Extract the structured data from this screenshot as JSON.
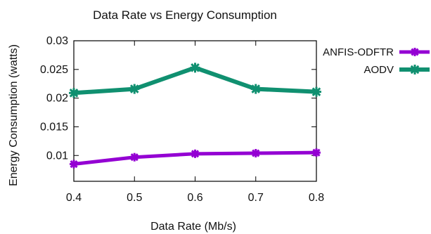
{
  "chart_data": {
    "type": "line",
    "title": "Data Rate vs Energy Consumption",
    "xlabel": "Data Rate (Mb/s)",
    "ylabel": "Energy Consumption (watts)",
    "x": [
      0.4,
      0.5,
      0.6,
      0.7,
      0.8
    ],
    "x_tick_labels": [
      "0.4",
      "0.5",
      "0.6",
      "0.7",
      "0.8"
    ],
    "xlim": [
      0.4,
      0.8
    ],
    "y_ticks": [
      0.01,
      0.015,
      0.02,
      0.025,
      0.03
    ],
    "y_tick_labels": [
      "0.01",
      "0.015",
      "0.02",
      "0.025",
      "0.03"
    ],
    "ylim": [
      0.0055,
      0.03
    ],
    "grid": false,
    "legend_position": "outside-right",
    "series": [
      {
        "name": "ANFIS-ODFTR",
        "color": "#9400d3",
        "values": [
          0.0085,
          0.0097,
          0.0103,
          0.0104,
          0.0105
        ]
      },
      {
        "name": "AODV",
        "color": "#109070",
        "values": [
          0.0209,
          0.0216,
          0.0253,
          0.0216,
          0.0211
        ]
      }
    ]
  }
}
